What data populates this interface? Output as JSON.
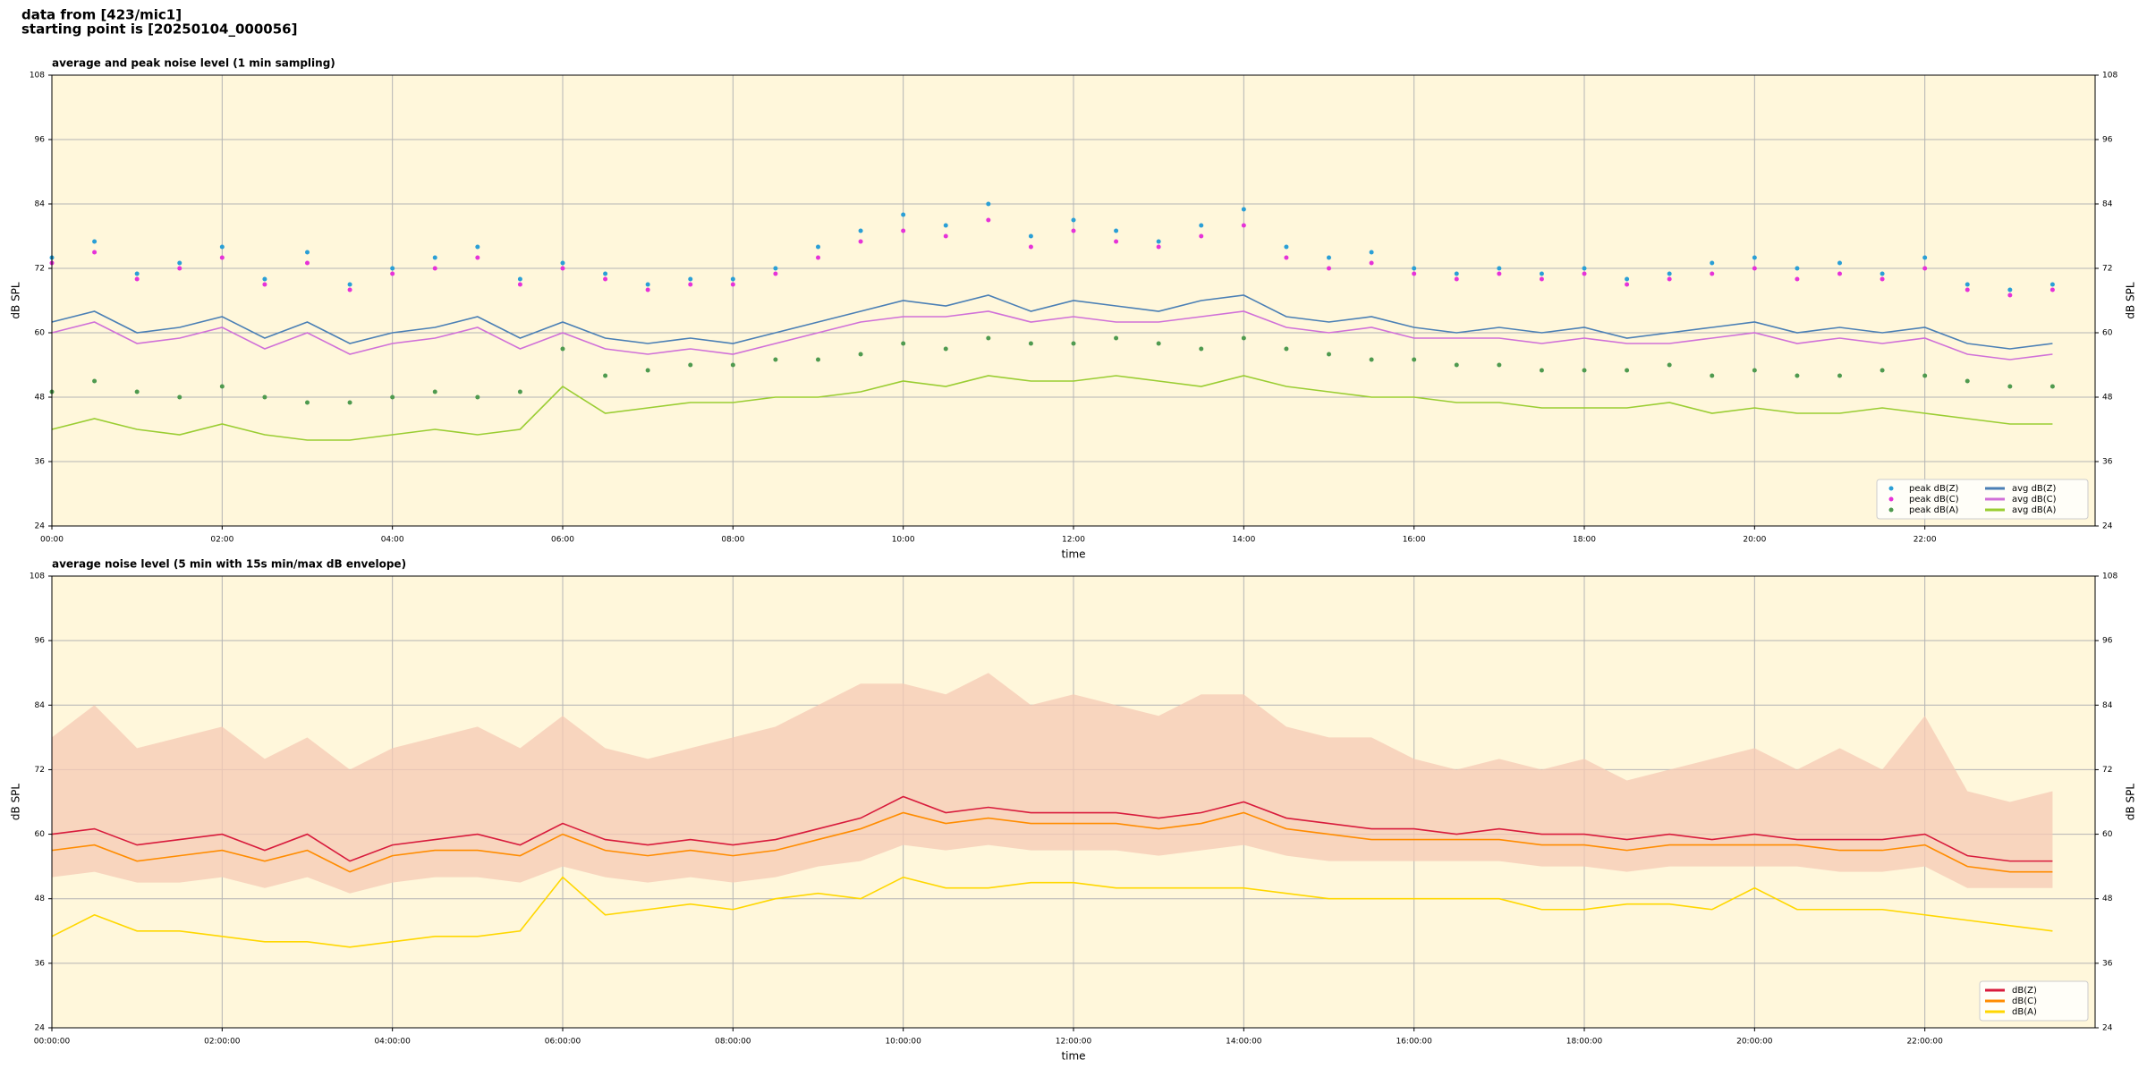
{
  "header": {
    "line1": "data from [423/mic1]",
    "line2": "starting point is [20250104_000056]"
  },
  "chart_data": [
    {
      "type": "line",
      "title": "average and peak noise level (1 min sampling)",
      "x_label": "time",
      "y_label": "dB SPL",
      "background": "#fff7db",
      "grid": true,
      "legend": "lower right",
      "legend_columns": 2,
      "x": [
        0,
        0.5,
        1,
        1.5,
        2,
        2.5,
        3,
        3.5,
        4,
        4.5,
        5,
        5.5,
        6,
        6.5,
        7,
        7.5,
        8,
        8.5,
        9,
        9.5,
        10,
        10.5,
        11,
        11.5,
        12,
        12.5,
        13,
        13.5,
        14,
        14.5,
        15,
        15.5,
        16,
        16.5,
        17,
        17.5,
        18,
        18.5,
        19,
        19.5,
        20,
        20.5,
        21,
        21.5,
        22,
        22.5,
        23,
        23.5
      ],
      "xlim": [
        0,
        24
      ],
      "xticks": [
        {
          "value": 0,
          "label": "00:00"
        },
        {
          "value": 2,
          "label": "02:00"
        },
        {
          "value": 4,
          "label": "04:00"
        },
        {
          "value": 6,
          "label": "06:00"
        },
        {
          "value": 8,
          "label": "08:00"
        },
        {
          "value": 10,
          "label": "10:00"
        },
        {
          "value": 12,
          "label": "12:00"
        },
        {
          "value": 14,
          "label": "14:00"
        },
        {
          "value": 16,
          "label": "16:00"
        },
        {
          "value": 18,
          "label": "18:00"
        },
        {
          "value": 20,
          "label": "20:00"
        },
        {
          "value": 22,
          "label": "22:00"
        }
      ],
      "ylim": [
        24,
        108
      ],
      "yticks": [
        24,
        36,
        48,
        60,
        72,
        84,
        96,
        108
      ],
      "series": [
        {
          "name": "peak dB(Z)",
          "style": "scatter",
          "color": "#2a9fd6",
          "values": [
            74,
            77,
            71,
            73,
            76,
            70,
            75,
            69,
            72,
            74,
            76,
            70,
            73,
            71,
            69,
            70,
            70,
            72,
            76,
            79,
            82,
            80,
            84,
            78,
            81,
            79,
            77,
            80,
            83,
            76,
            74,
            75,
            72,
            71,
            72,
            71,
            72,
            70,
            71,
            73,
            74,
            72,
            73,
            71,
            74,
            69,
            68,
            69
          ]
        },
        {
          "name": "peak dB(C)",
          "style": "scatter",
          "color": "#e632d8",
          "values": [
            73,
            75,
            70,
            72,
            74,
            69,
            73,
            68,
            71,
            72,
            74,
            69,
            72,
            70,
            68,
            69,
            69,
            71,
            74,
            77,
            79,
            78,
            81,
            76,
            79,
            77,
            76,
            78,
            80,
            74,
            72,
            73,
            71,
            70,
            71,
            70,
            71,
            69,
            70,
            71,
            72,
            70,
            71,
            70,
            72,
            68,
            67,
            68
          ]
        },
        {
          "name": "peak dB(A)",
          "style": "scatter",
          "color": "#4f9a4f",
          "values": [
            49,
            51,
            49,
            48,
            50,
            48,
            47,
            47,
            48,
            49,
            48,
            49,
            57,
            52,
            53,
            54,
            54,
            55,
            55,
            56,
            58,
            57,
            59,
            58,
            58,
            59,
            58,
            57,
            59,
            57,
            56,
            55,
            55,
            54,
            54,
            53,
            53,
            53,
            54,
            52,
            53,
            52,
            52,
            53,
            52,
            51,
            50,
            50
          ]
        },
        {
          "name": "avg dB(Z)",
          "style": "line",
          "color": "#4a7fb5",
          "values": [
            62,
            64,
            60,
            61,
            63,
            59,
            62,
            58,
            60,
            61,
            63,
            59,
            62,
            59,
            58,
            59,
            58,
            60,
            62,
            64,
            66,
            65,
            67,
            64,
            66,
            65,
            64,
            66,
            67,
            63,
            62,
            63,
            61,
            60,
            61,
            60,
            61,
            59,
            60,
            61,
            62,
            60,
            61,
            60,
            61,
            58,
            57,
            58
          ]
        },
        {
          "name": "avg dB(C)",
          "style": "line",
          "color": "#d070d8",
          "values": [
            60,
            62,
            58,
            59,
            61,
            57,
            60,
            56,
            58,
            59,
            61,
            57,
            60,
            57,
            56,
            57,
            56,
            58,
            60,
            62,
            63,
            63,
            64,
            62,
            63,
            62,
            62,
            63,
            64,
            61,
            60,
            61,
            59,
            59,
            59,
            58,
            59,
            58,
            58,
            59,
            60,
            58,
            59,
            58,
            59,
            56,
            55,
            56
          ]
        },
        {
          "name": "avg dB(A)",
          "style": "line",
          "color": "#9acd32",
          "values": [
            42,
            44,
            42,
            41,
            43,
            41,
            40,
            40,
            41,
            42,
            41,
            42,
            50,
            45,
            46,
            47,
            47,
            48,
            48,
            49,
            51,
            50,
            52,
            51,
            51,
            52,
            51,
            50,
            52,
            50,
            49,
            48,
            48,
            47,
            47,
            46,
            46,
            46,
            47,
            45,
            46,
            45,
            45,
            46,
            45,
            44,
            43,
            43
          ]
        }
      ]
    },
    {
      "type": "line",
      "title": "average noise level (5 min with 15s min/max dB envelope)",
      "x_label": "time",
      "y_label": "dB SPL",
      "background": "#fff7db",
      "grid": true,
      "legend": "lower right",
      "legend_columns": 1,
      "x": [
        0,
        0.5,
        1,
        1.5,
        2,
        2.5,
        3,
        3.5,
        4,
        4.5,
        5,
        5.5,
        6,
        6.5,
        7,
        7.5,
        8,
        8.5,
        9,
        9.5,
        10,
        10.5,
        11,
        11.5,
        12,
        12.5,
        13,
        13.5,
        14,
        14.5,
        15,
        15.5,
        16,
        16.5,
        17,
        17.5,
        18,
        18.5,
        19,
        19.5,
        20,
        20.5,
        21,
        21.5,
        22,
        22.5,
        23,
        23.5
      ],
      "xlim": [
        0,
        24
      ],
      "xticks": [
        {
          "value": 0,
          "label": "00:00:00"
        },
        {
          "value": 2,
          "label": "02:00:00"
        },
        {
          "value": 4,
          "label": "04:00:00"
        },
        {
          "value": 6,
          "label": "06:00:00"
        },
        {
          "value": 8,
          "label": "08:00:00"
        },
        {
          "value": 10,
          "label": "10:00:00"
        },
        {
          "value": 12,
          "label": "12:00:00"
        },
        {
          "value": 14,
          "label": "14:00:00"
        },
        {
          "value": 16,
          "label": "16:00:00"
        },
        {
          "value": 18,
          "label": "18:00:00"
        },
        {
          "value": 20,
          "label": "20:00:00"
        },
        {
          "value": 22,
          "label": "22:00:00"
        }
      ],
      "ylim": [
        24,
        108
      ],
      "yticks": [
        24,
        36,
        48,
        60,
        72,
        84,
        96,
        108
      ],
      "envelope": {
        "color": "#f6c9b4",
        "min": [
          52,
          53,
          51,
          51,
          52,
          50,
          52,
          49,
          51,
          52,
          52,
          51,
          54,
          52,
          51,
          52,
          51,
          52,
          54,
          55,
          58,
          57,
          58,
          57,
          57,
          57,
          56,
          57,
          58,
          56,
          55,
          55,
          55,
          55,
          55,
          54,
          54,
          53,
          54,
          54,
          54,
          54,
          53,
          53,
          54,
          50,
          50,
          50
        ],
        "max": [
          78,
          84,
          76,
          78,
          80,
          74,
          78,
          72,
          76,
          78,
          80,
          76,
          82,
          76,
          74,
          76,
          78,
          80,
          84,
          88,
          88,
          86,
          90,
          84,
          86,
          84,
          82,
          86,
          86,
          80,
          78,
          78,
          74,
          72,
          74,
          72,
          74,
          70,
          72,
          74,
          76,
          72,
          76,
          72,
          82,
          68,
          66,
          68
        ]
      },
      "series": [
        {
          "name": "dB(Z)",
          "style": "line",
          "color": "#d81b3c",
          "values": [
            60,
            61,
            58,
            59,
            60,
            57,
            60,
            55,
            58,
            59,
            60,
            58,
            62,
            59,
            58,
            59,
            58,
            59,
            61,
            63,
            67,
            64,
            65,
            64,
            64,
            64,
            63,
            64,
            66,
            63,
            62,
            61,
            61,
            60,
            61,
            60,
            60,
            59,
            60,
            59,
            60,
            59,
            59,
            59,
            60,
            56,
            55,
            55
          ]
        },
        {
          "name": "dB(C)",
          "style": "line",
          "color": "#ff8c00",
          "values": [
            57,
            58,
            55,
            56,
            57,
            55,
            57,
            53,
            56,
            57,
            57,
            56,
            60,
            57,
            56,
            57,
            56,
            57,
            59,
            61,
            64,
            62,
            63,
            62,
            62,
            62,
            61,
            62,
            64,
            61,
            60,
            59,
            59,
            59,
            59,
            58,
            58,
            57,
            58,
            58,
            58,
            58,
            57,
            57,
            58,
            54,
            53,
            53
          ]
        },
        {
          "name": "dB(A)",
          "style": "line",
          "color": "#ffd700",
          "values": [
            41,
            45,
            42,
            42,
            41,
            40,
            40,
            39,
            40,
            41,
            41,
            42,
            52,
            45,
            46,
            47,
            46,
            48,
            49,
            48,
            52,
            50,
            50,
            51,
            51,
            50,
            50,
            50,
            50,
            49,
            48,
            48,
            48,
            48,
            48,
            46,
            46,
            47,
            47,
            46,
            50,
            46,
            46,
            46,
            45,
            44,
            43,
            42
          ]
        }
      ]
    }
  ]
}
